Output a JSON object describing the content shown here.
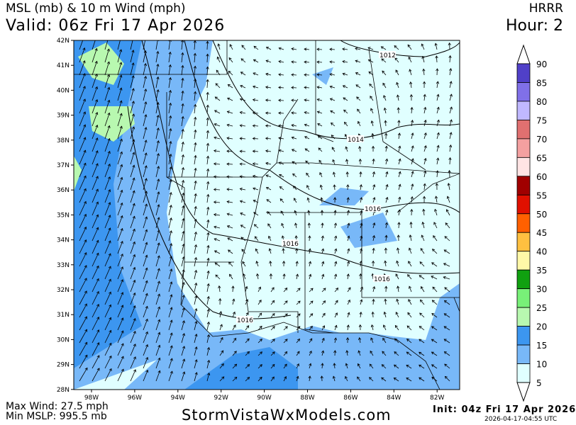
{
  "header": {
    "title": "MSL (mb) & 10 m Wind (mph)",
    "valid": "Valid: 06z Fri 17 Apr 2026",
    "model": "HRRR",
    "hour": "Hour: 2"
  },
  "footer": {
    "max_wind": "Max Wind: 27.5 mph",
    "min_mslp": "Min MSLP: 995.5 mb",
    "brand": "StormVistaWxModels.com",
    "init": "Init: 04z Fri 17 Apr 2026",
    "timestamp": "2026-04-17-04:55 UTC"
  },
  "map": {
    "lat_labels": [
      "42N",
      "41N",
      "40N",
      "39N",
      "38N",
      "37N",
      "36N",
      "35N",
      "34N",
      "33N",
      "32N",
      "31N",
      "30N",
      "29N",
      "28N"
    ],
    "lon_labels": [
      "98W",
      "96W",
      "94W",
      "92W",
      "90W",
      "88W",
      "86W",
      "84W",
      "82W"
    ],
    "isobar_labels": [
      "1012",
      "1014",
      "1016",
      "1016",
      "1016",
      "1016"
    ]
  },
  "colorbar": {
    "labels": [
      "90",
      "85",
      "80",
      "75",
      "70",
      "65",
      "60",
      "55",
      "50",
      "45",
      "40",
      "35",
      "30",
      "25",
      "20",
      "15",
      "10",
      "5"
    ],
    "colors": [
      "#5040c8",
      "#8070e8",
      "#c0b8ff",
      "#e07070",
      "#f4a0a0",
      "#ffe4e4",
      "#a00000",
      "#e01000",
      "#ff6000",
      "#ffc040",
      "#fff8a8",
      "#10a010",
      "#78f078",
      "#b8f8b0",
      "#3c96f0",
      "#78b8f8",
      "#e0ffff"
    ]
  }
}
